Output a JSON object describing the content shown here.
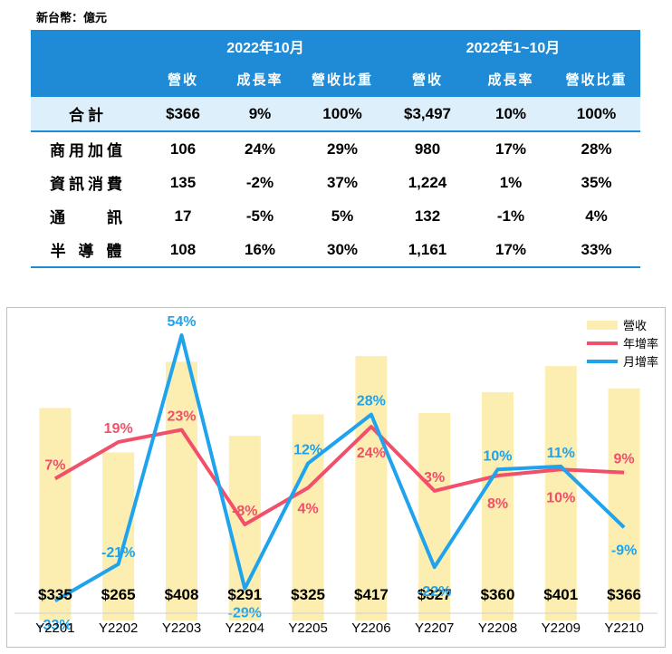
{
  "unit_label": "新台幣：億元",
  "table": {
    "group_headers": [
      "2022年10月",
      "2022年1~10月"
    ],
    "sub_headers": [
      "營收",
      "成長率",
      "營收比重",
      "營收",
      "成長率",
      "營收比重"
    ],
    "rows": [
      {
        "label": "合計",
        "cells": [
          "$366",
          "9%",
          "100%",
          "$3,497",
          "10%",
          "100%"
        ]
      },
      {
        "label": "商用加值",
        "cells": [
          "106",
          "24%",
          "29%",
          "980",
          "17%",
          "28%"
        ]
      },
      {
        "label": "資訊消費",
        "cells": [
          "135",
          "-2%",
          "37%",
          "1,224",
          "1%",
          "35%"
        ]
      },
      {
        "label": "通　　訊",
        "cells": [
          "17",
          "-5%",
          "5%",
          "132",
          "-1%",
          "4%"
        ]
      },
      {
        "label": "半 導 體",
        "cells": [
          "108",
          "16%",
          "30%",
          "1,161",
          "17%",
          "33%"
        ]
      }
    ]
  },
  "chart_data": {
    "type": "bar",
    "categories": [
      "Y2201",
      "Y2202",
      "Y2203",
      "Y2204",
      "Y2205",
      "Y2206",
      "Y2207",
      "Y2208",
      "Y2209",
      "Y2210"
    ],
    "series": [
      {
        "name": "營收",
        "type": "bar",
        "color": "#FCEDB0",
        "values": [
          335,
          265,
          408,
          291,
          325,
          417,
          327,
          360,
          401,
          366
        ],
        "labels": [
          "$335",
          "$265",
          "$408",
          "$291",
          "$325",
          "$417",
          "$327",
          "$360",
          "$401",
          "$366"
        ]
      },
      {
        "name": "年增率",
        "type": "line",
        "color": "#F1506A",
        "values": [
          7,
          19,
          23,
          -8,
          4,
          24,
          3,
          8,
          10,
          9
        ],
        "labels": [
          "7%",
          "19%",
          "23%",
          "-8%",
          "4%",
          "24%",
          "3%",
          "8%",
          "10%",
          "9%"
        ]
      },
      {
        "name": "月增率",
        "type": "line",
        "color": "#1FA3EC",
        "values": [
          -33,
          -21,
          54,
          -29,
          12,
          28,
          -22,
          10,
          11,
          -9
        ],
        "labels": [
          "-33%",
          "-21%",
          "54%",
          "-29%",
          "12%",
          "28%",
          "-22%",
          "10%",
          "11%",
          "-9%"
        ]
      }
    ],
    "legend_position": "top-right",
    "grid": false
  }
}
